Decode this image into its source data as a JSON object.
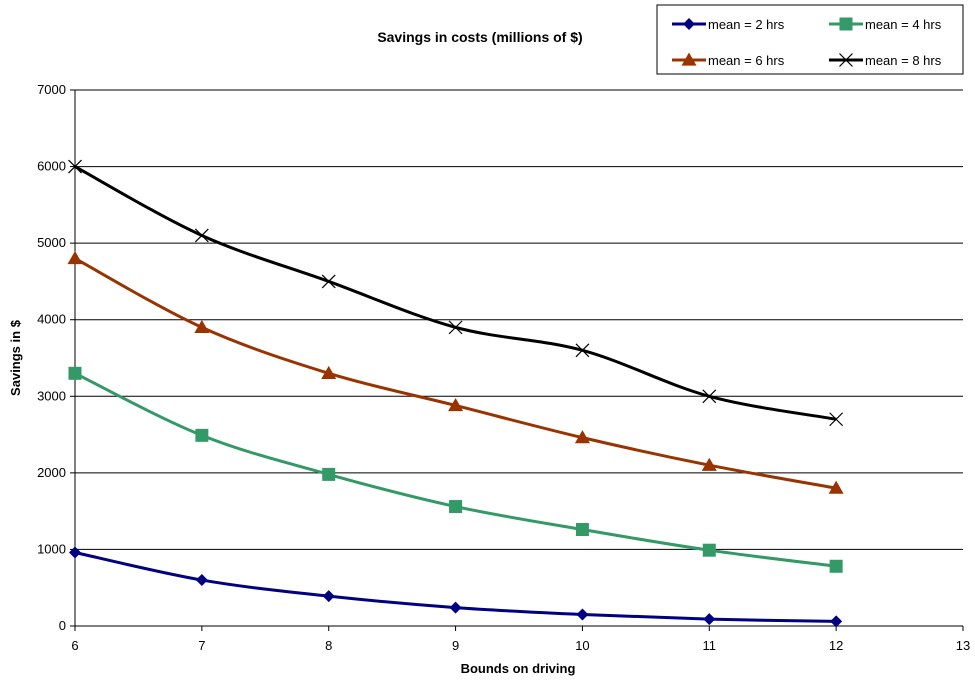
{
  "chart_data": {
    "type": "line",
    "title": "Savings in costs (millions of $)",
    "xlabel": "Bounds on driving",
    "ylabel": "Savings in $",
    "xlim": [
      6,
      13
    ],
    "ylim": [
      0,
      7000
    ],
    "x_ticks": [
      6,
      7,
      8,
      9,
      10,
      11,
      12,
      13
    ],
    "y_ticks": [
      0,
      1000,
      2000,
      3000,
      4000,
      5000,
      6000,
      7000
    ],
    "grid": "horizontal",
    "legend": "top-right",
    "x": [
      6,
      7,
      8,
      9,
      10,
      11,
      12
    ],
    "series": [
      {
        "name": "mean = 2 hrs",
        "color": "#000080",
        "marker": "diamond",
        "values": [
          960,
          600,
          390,
          240,
          150,
          90,
          60
        ]
      },
      {
        "name": "mean = 4 hrs",
        "color": "#339966",
        "marker": "square",
        "values": [
          3300,
          2490,
          1980,
          1560,
          1260,
          990,
          780
        ]
      },
      {
        "name": "mean = 6 hrs",
        "color": "#993300",
        "marker": "triangle",
        "values": [
          4800,
          3900,
          3300,
          2880,
          2460,
          2100,
          1800
        ]
      },
      {
        "name": "mean = 8 hrs",
        "color": "#000000",
        "marker": "x",
        "values": [
          6000,
          5100,
          4500,
          3900,
          3600,
          3000,
          2700
        ]
      }
    ]
  }
}
